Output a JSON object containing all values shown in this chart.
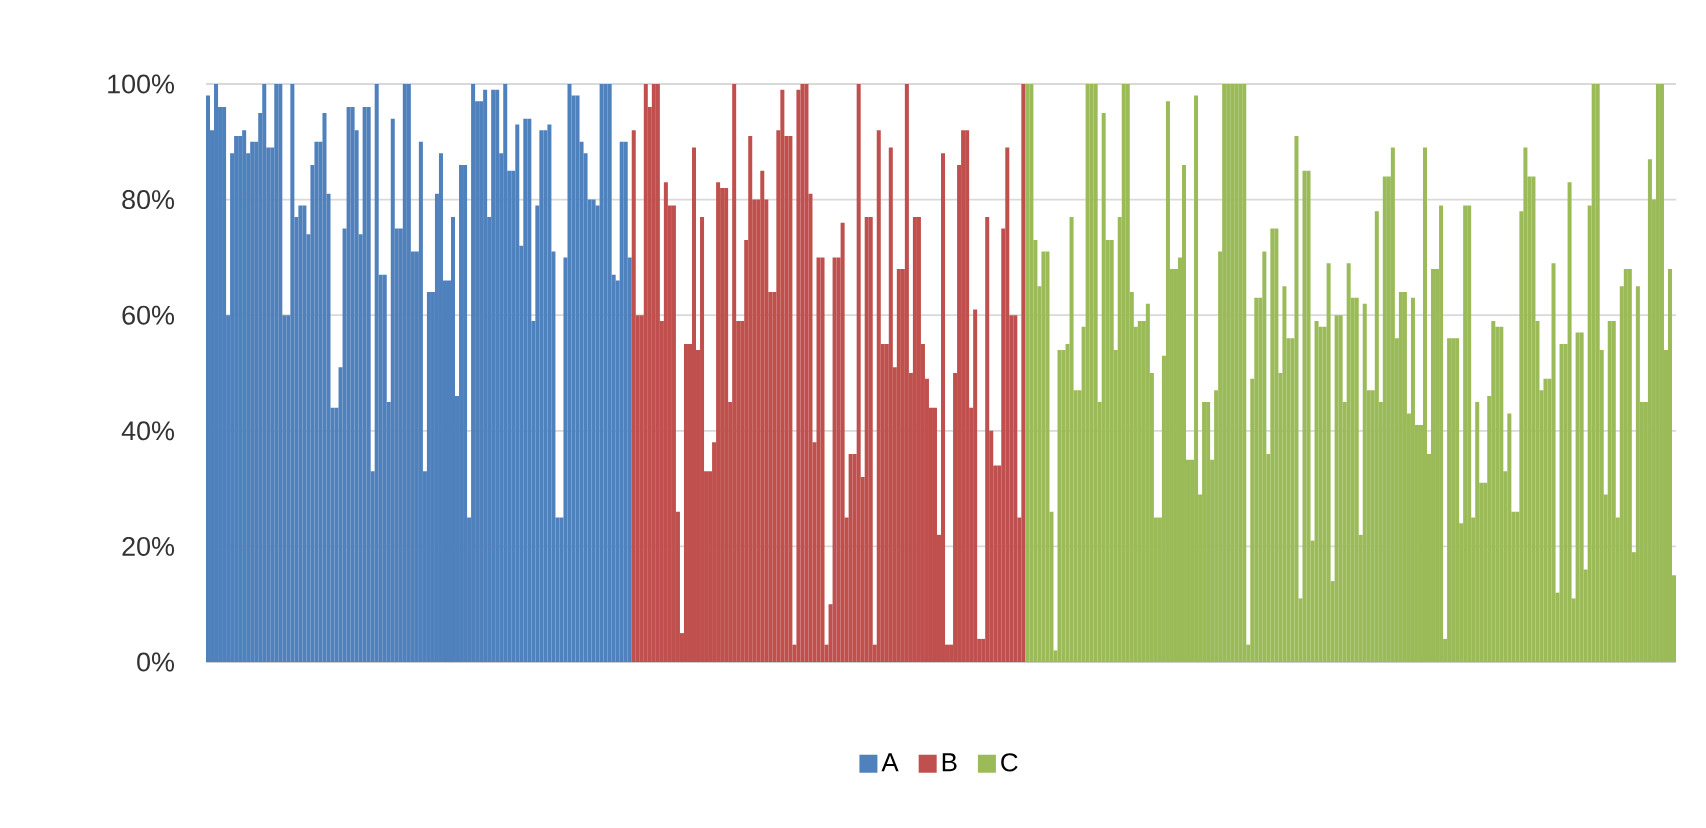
{
  "chart_data": {
    "type": "bar",
    "categories": [
      null,
      null,
      null,
      null,
      null,
      null,
      null,
      null,
      null,
      null,
      null,
      null,
      null,
      null,
      null,
      null,
      null,
      null,
      null,
      null,
      null,
      null,
      null,
      null,
      null,
      null,
      null,
      null,
      null,
      null,
      null,
      null,
      null,
      null,
      null,
      null,
      null,
      null,
      null,
      null,
      null,
      null,
      null,
      null,
      null,
      null,
      null,
      null,
      null,
      null,
      null,
      null,
      null,
      null,
      null,
      null,
      null,
      null,
      null,
      null,
      null,
      null,
      null,
      null,
      null,
      null,
      null,
      null,
      null,
      null,
      null,
      null,
      null,
      null,
      null,
      null,
      null,
      null,
      null,
      null,
      null,
      null,
      null,
      null,
      null,
      null,
      null,
      null,
      null,
      null,
      null,
      null,
      null,
      null,
      null,
      null,
      null,
      null,
      null,
      null,
      null,
      null,
      null,
      null,
      null,
      null,
      null,
      null,
      null,
      null,
      null,
      null,
      null,
      null,
      null,
      null,
      null,
      null,
      null,
      null,
      null,
      null,
      null,
      null,
      null,
      null,
      null,
      null,
      null,
      null,
      null,
      null,
      null,
      null,
      null,
      null,
      null,
      null,
      null,
      null,
      null,
      null,
      null,
      null,
      null,
      null,
      null,
      null,
      null,
      null,
      null,
      null,
      null,
      null,
      null,
      null,
      null,
      null,
      null,
      null,
      null,
      null,
      null,
      null,
      null,
      null,
      null,
      null,
      null,
      null,
      null,
      null,
      null,
      null,
      null,
      null,
      null,
      null,
      null,
      null,
      null,
      null,
      null,
      null,
      null,
      null,
      null,
      null,
      null,
      null,
      null,
      null,
      null,
      null,
      null,
      null,
      null,
      null,
      null,
      null,
      null,
      null,
      null,
      null,
      null,
      null,
      null,
      null,
      null,
      null,
      null,
      null,
      null,
      null,
      null,
      null,
      null,
      null,
      null,
      null,
      null,
      null,
      null,
      null,
      null,
      null,
      null,
      null,
      null,
      null,
      null,
      null,
      null,
      null,
      null,
      null,
      null,
      null,
      null,
      null,
      null,
      null,
      null,
      null,
      null,
      null,
      null,
      null,
      null,
      null,
      null,
      null,
      null,
      null,
      null,
      null,
      null,
      null,
      null,
      null,
      null,
      null,
      null,
      null,
      null,
      null,
      null,
      null,
      null,
      null,
      null,
      null,
      null,
      null,
      null,
      null,
      null,
      null,
      null,
      null,
      null,
      null,
      null,
      null,
      null,
      null,
      null,
      null,
      null,
      null,
      null,
      null,
      null,
      null,
      null,
      null,
      null,
      null,
      null,
      null,
      null,
      null,
      null,
      null,
      null,
      null,
      null,
      null,
      null,
      null,
      null,
      null,
      null,
      null,
      null,
      null,
      null,
      null,
      null,
      null,
      null,
      null,
      null,
      null,
      null,
      null,
      null,
      null,
      null,
      null,
      null,
      null,
      null,
      null,
      null,
      null,
      null,
      null,
      null,
      null,
      null,
      null,
      null,
      null,
      null,
      null,
      null,
      null,
      null,
      null,
      null,
      null,
      null,
      null,
      null,
      null,
      null,
      null,
      null,
      null,
      null,
      null,
      null,
      null,
      null,
      null
    ],
    "series": [
      {
        "name": "A",
        "color": "#4f81bd",
        "values": [
          98,
          92,
          100,
          96,
          96,
          60,
          88,
          91,
          91,
          92,
          88,
          90,
          90,
          95,
          100,
          89,
          89,
          100,
          100,
          60,
          60,
          100,
          77,
          79,
          79,
          74,
          86,
          90,
          90,
          95,
          81,
          44,
          44,
          51,
          75,
          96,
          96,
          92,
          74,
          96,
          96,
          33,
          100,
          67,
          67,
          45,
          94,
          75,
          75,
          100,
          100,
          71,
          71,
          90,
          33,
          64,
          64,
          81,
          88,
          66,
          66,
          77,
          46,
          86,
          86,
          25,
          100,
          97,
          97,
          99,
          77,
          99,
          99,
          88,
          100,
          85,
          85,
          93,
          72,
          94,
          94,
          59,
          79,
          92,
          92,
          93,
          71,
          25,
          25,
          70,
          100,
          98,
          98,
          90,
          88,
          80,
          80,
          79,
          100,
          100,
          100,
          67,
          66,
          90,
          90,
          70,
          null,
          null,
          null,
          null,
          null,
          null,
          null,
          null,
          null,
          null,
          null,
          null,
          null,
          null,
          null,
          null,
          null,
          null,
          null,
          null,
          null,
          null,
          null,
          null,
          null,
          null,
          null,
          null,
          null,
          null,
          null,
          null,
          null,
          null,
          null,
          null,
          null,
          null,
          null,
          null,
          null,
          null,
          null,
          null,
          null,
          null,
          null,
          null,
          null,
          null,
          null,
          null,
          null,
          null,
          null,
          null,
          null,
          null,
          null,
          null,
          null,
          null,
          null,
          null,
          null,
          null,
          null,
          null,
          null,
          null,
          null,
          null,
          null,
          null,
          null,
          null,
          null,
          null,
          null,
          null,
          null,
          null,
          null,
          null,
          null,
          null,
          null,
          null,
          null,
          null,
          null,
          null,
          null,
          null,
          null,
          null,
          null,
          null,
          null,
          null,
          null,
          null,
          null,
          null,
          null,
          null,
          null,
          null,
          null,
          null,
          null,
          null,
          null,
          null,
          null,
          null,
          null,
          null,
          null,
          null,
          null,
          null,
          null,
          null,
          null,
          null,
          null,
          null,
          null,
          null,
          null,
          null,
          null,
          null,
          null,
          null,
          null,
          null,
          null,
          null,
          null,
          null,
          null,
          null,
          null,
          null,
          null,
          null,
          null,
          null,
          null,
          null,
          null,
          null,
          null,
          null,
          null,
          null,
          null,
          null,
          null,
          null,
          null,
          null,
          null,
          null,
          null,
          null,
          null,
          null,
          null,
          null,
          null,
          null,
          null,
          null,
          null,
          null,
          null,
          null,
          null,
          null,
          null,
          null,
          null,
          null,
          null,
          null,
          null,
          null,
          null,
          null,
          null,
          null,
          null,
          null,
          null,
          null,
          null,
          null,
          null,
          null,
          null,
          null,
          null,
          null,
          null,
          null,
          null,
          null,
          null,
          null,
          null,
          null,
          null,
          null,
          null,
          null,
          null,
          null,
          null,
          null,
          null,
          null,
          null,
          null,
          null,
          null,
          null,
          null,
          null,
          null,
          null,
          null,
          null,
          null,
          null,
          null,
          null,
          null,
          null,
          null,
          null,
          null,
          null,
          null,
          null,
          null,
          null,
          null,
          null,
          null,
          null,
          null,
          null,
          null,
          null,
          null,
          null,
          null
        ]
      },
      {
        "name": "B",
        "color": "#c0504d",
        "values": [
          null,
          null,
          null,
          null,
          null,
          null,
          null,
          null,
          null,
          null,
          null,
          null,
          null,
          null,
          null,
          null,
          null,
          null,
          null,
          null,
          null,
          null,
          null,
          null,
          null,
          null,
          null,
          null,
          null,
          null,
          null,
          null,
          null,
          null,
          null,
          null,
          null,
          null,
          null,
          null,
          null,
          null,
          null,
          null,
          null,
          null,
          null,
          null,
          null,
          null,
          null,
          null,
          null,
          null,
          null,
          null,
          null,
          null,
          null,
          null,
          null,
          null,
          null,
          null,
          null,
          null,
          null,
          null,
          null,
          null,
          null,
          null,
          null,
          null,
          null,
          null,
          null,
          null,
          null,
          null,
          null,
          null,
          null,
          null,
          null,
          null,
          null,
          null,
          null,
          null,
          null,
          null,
          null,
          null,
          null,
          null,
          null,
          null,
          null,
          null,
          null,
          null,
          null,
          null,
          null,
          null,
          92,
          60,
          60,
          100,
          96,
          100,
          100,
          59,
          83,
          79,
          79,
          26,
          5,
          55,
          55,
          89,
          54,
          77,
          33,
          33,
          38,
          83,
          82,
          82,
          45,
          100,
          59,
          59,
          73,
          91,
          80,
          80,
          85,
          80,
          64,
          64,
          92,
          99,
          91,
          91,
          3,
          99,
          100,
          100,
          81,
          38,
          70,
          70,
          3,
          10,
          70,
          70,
          76,
          25,
          36,
          36,
          100,
          32,
          77,
          77,
          3,
          92,
          55,
          55,
          89,
          51,
          68,
          68,
          100,
          50,
          77,
          77,
          55,
          49,
          44,
          44,
          22,
          88,
          3,
          3,
          50,
          86,
          92,
          92,
          44,
          61,
          4,
          4,
          77,
          40,
          34,
          34,
          75,
          89,
          60,
          60,
          25,
          100,
          null,
          null,
          null,
          null,
          null,
          null,
          null,
          null,
          null,
          null,
          null,
          null,
          null,
          null,
          null,
          null,
          null,
          null,
          null,
          null,
          null,
          null,
          null,
          null,
          null,
          null,
          null,
          null,
          null,
          null,
          null,
          null,
          null,
          null,
          null,
          null,
          null,
          null,
          null,
          null,
          null,
          null,
          null,
          null,
          null,
          null,
          null,
          null,
          null,
          null,
          null,
          null,
          null,
          null,
          null,
          null,
          null,
          null,
          null,
          null,
          null,
          null,
          null,
          null,
          null,
          null,
          null,
          null,
          null,
          null,
          null,
          null,
          null,
          null,
          null,
          null,
          null,
          null,
          null,
          null,
          null,
          null,
          null,
          null,
          null,
          null,
          null,
          null,
          null,
          null,
          null,
          null,
          null,
          null,
          null,
          null,
          null,
          null,
          null,
          null,
          null,
          null,
          null,
          null,
          null,
          null,
          null,
          null,
          null,
          null,
          null,
          null,
          null,
          null,
          null,
          null,
          null,
          null,
          null,
          null,
          null,
          null,
          null,
          null,
          null,
          null,
          null,
          null,
          null,
          null,
          null,
          null,
          null,
          null,
          null,
          null,
          null,
          null,
          null,
          null,
          null,
          null,
          null,
          null,
          null,
          null,
          null,
          null,
          null,
          null,
          null,
          null,
          null,
          null,
          null,
          null,
          null,
          null,
          null,
          null,
          null,
          null
        ]
      },
      {
        "name": "C",
        "color": "#9bbb59",
        "values": [
          null,
          null,
          null,
          null,
          null,
          null,
          null,
          null,
          null,
          null,
          null,
          null,
          null,
          null,
          null,
          null,
          null,
          null,
          null,
          null,
          null,
          null,
          null,
          null,
          null,
          null,
          null,
          null,
          null,
          null,
          null,
          null,
          null,
          null,
          null,
          null,
          null,
          null,
          null,
          null,
          null,
          null,
          null,
          null,
          null,
          null,
          null,
          null,
          null,
          null,
          null,
          null,
          null,
          null,
          null,
          null,
          null,
          null,
          null,
          null,
          null,
          null,
          null,
          null,
          null,
          null,
          null,
          null,
          null,
          null,
          null,
          null,
          null,
          null,
          null,
          null,
          null,
          null,
          null,
          null,
          null,
          null,
          null,
          null,
          null,
          null,
          null,
          null,
          null,
          null,
          null,
          null,
          null,
          null,
          null,
          null,
          null,
          null,
          null,
          null,
          null,
          null,
          null,
          null,
          null,
          null,
          null,
          null,
          null,
          null,
          null,
          null,
          null,
          null,
          null,
          null,
          null,
          null,
          null,
          null,
          null,
          null,
          null,
          null,
          null,
          null,
          null,
          null,
          null,
          null,
          null,
          null,
          null,
          null,
          null,
          null,
          null,
          null,
          null,
          null,
          null,
          null,
          null,
          null,
          null,
          null,
          null,
          null,
          null,
          null,
          null,
          null,
          null,
          null,
          null,
          null,
          null,
          null,
          null,
          null,
          null,
          null,
          null,
          null,
          null,
          null,
          null,
          null,
          null,
          null,
          null,
          null,
          null,
          null,
          null,
          null,
          null,
          null,
          null,
          null,
          null,
          null,
          null,
          null,
          null,
          null,
          null,
          null,
          null,
          null,
          null,
          null,
          null,
          null,
          null,
          null,
          null,
          null,
          null,
          null,
          null,
          null,
          null,
          null,
          100,
          100,
          73,
          65,
          71,
          71,
          26,
          2,
          54,
          54,
          55,
          77,
          47,
          47,
          58,
          100,
          100,
          100,
          45,
          95,
          73,
          73,
          54,
          77,
          100,
          100,
          64,
          58,
          59,
          59,
          62,
          50,
          25,
          25,
          53,
          97,
          68,
          68,
          70,
          86,
          35,
          35,
          98,
          29,
          45,
          45,
          35,
          47,
          71,
          100,
          100,
          100,
          100,
          100,
          100,
          3,
          49,
          63,
          63,
          71,
          36,
          75,
          75,
          50,
          65,
          56,
          56,
          91,
          11,
          85,
          85,
          21,
          59,
          58,
          58,
          69,
          14,
          60,
          60,
          45,
          69,
          63,
          63,
          22,
          62,
          47,
          47,
          78,
          45,
          84,
          84,
          89,
          56,
          64,
          64,
          43,
          63,
          41,
          41,
          89,
          36,
          68,
          68,
          79,
          4,
          56,
          56,
          56,
          24,
          79,
          79,
          25,
          45,
          31,
          31,
          46,
          59,
          58,
          58,
          33,
          43,
          26,
          26,
          78,
          89,
          84,
          84,
          59,
          47,
          49,
          49,
          69,
          12,
          55,
          55,
          83,
          11,
          57,
          57,
          16,
          79,
          100,
          100,
          54,
          29,
          59,
          59,
          25,
          65,
          68,
          68,
          19,
          65,
          45,
          45,
          87,
          80,
          100,
          100,
          54,
          68,
          15
        ]
      }
    ],
    "ylim": [
      0,
      100
    ],
    "yticks": [
      {
        "value": 0,
        "label": "0%"
      },
      {
        "value": 20,
        "label": "20%"
      },
      {
        "value": 40,
        "label": "40%"
      },
      {
        "value": 60,
        "label": "60%"
      },
      {
        "value": 80,
        "label": "80%"
      },
      {
        "value": 100,
        "label": "100%"
      }
    ],
    "grid": "y",
    "legend": "bottom"
  }
}
